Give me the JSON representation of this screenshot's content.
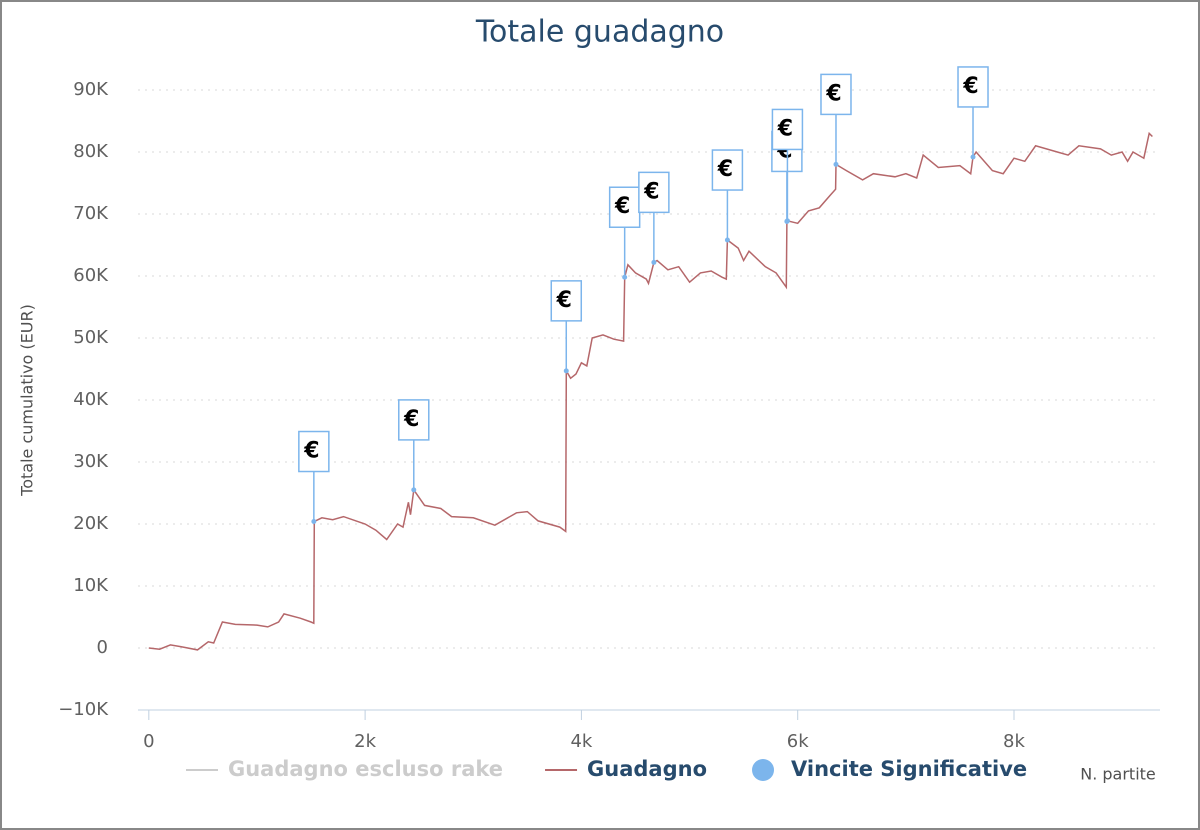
{
  "chart_data": {
    "type": "line",
    "title": "Totale guadagno",
    "x_label": "N. partite",
    "y_label": "Totale cumulativo (EUR)",
    "xlim": [
      -100,
      9350
    ],
    "ylim": [
      -10000,
      90000
    ],
    "xticks": [
      0,
      {
        "value": 2000,
        "label": "2k"
      },
      {
        "value": 4000,
        "label": "4k"
      },
      {
        "value": 6000,
        "label": "6k"
      },
      {
        "value": 8000,
        "label": "8k"
      }
    ],
    "yticks": [
      {
        "value": -10000,
        "label": "−10K"
      },
      0,
      {
        "value": 10000,
        "label": "10K"
      },
      {
        "value": 20000,
        "label": "20K"
      },
      {
        "value": 30000,
        "label": "30K"
      },
      {
        "value": 40000,
        "label": "40K"
      },
      {
        "value": 50000,
        "label": "50K"
      },
      {
        "value": 60000,
        "label": "60K"
      },
      {
        "value": 70000,
        "label": "70K"
      },
      {
        "value": 80000,
        "label": "80K"
      },
      {
        "value": 90000,
        "label": "90K"
      }
    ],
    "grid": true,
    "series": [
      {
        "name": "Guadagno escluso rake",
        "color": "#cccccc",
        "visible": false
      },
      {
        "name": "Guadagno",
        "color": "#b5676a",
        "visible": true,
        "x": [
          0,
          100,
          200,
          300,
          450,
          550,
          600,
          680,
          800,
          1000,
          1100,
          1200,
          1250,
          1400,
          1500,
          1526,
          1530,
          1600,
          1700,
          1800,
          2000,
          2100,
          2200,
          2300,
          2350,
          2400,
          2420,
          2450,
          2550,
          2700,
          2800,
          3000,
          3200,
          3400,
          3500,
          3600,
          3800,
          3855,
          3860,
          3900,
          3950,
          4000,
          4050,
          4100,
          4200,
          4300,
          4390,
          4400,
          4430,
          4500,
          4600,
          4620,
          4670,
          4700,
          4800,
          4900,
          5000,
          5100,
          5200,
          5300,
          5340,
          5350,
          5450,
          5500,
          5550,
          5700,
          5800,
          5895,
          5900,
          5905,
          6000,
          6100,
          6200,
          6300,
          6350,
          6354,
          6450,
          6600,
          6700,
          6900,
          7000,
          7100,
          7160,
          7300,
          7500,
          7600,
          7621,
          7650,
          7800,
          7900,
          8000,
          8100,
          8200,
          8400,
          8500,
          8600,
          8800,
          8900,
          9000,
          9050,
          9100,
          9200,
          9250,
          9280
        ],
        "values": [
          0,
          -200,
          500,
          200,
          -300,
          1000,
          800,
          4200,
          3800,
          3700,
          3400,
          4200,
          5500,
          4800,
          4200,
          4000,
          20400,
          21000,
          20700,
          21200,
          20000,
          19000,
          17500,
          20000,
          19500,
          23500,
          21500,
          25500,
          23000,
          22500,
          21200,
          21000,
          19800,
          21800,
          22000,
          20500,
          19500,
          18800,
          44700,
          43500,
          44200,
          46000,
          45500,
          50000,
          50500,
          49800,
          49500,
          59800,
          61800,
          60500,
          59500,
          58800,
          62200,
          62500,
          61000,
          61500,
          59000,
          60500,
          60800,
          59800,
          59500,
          65800,
          64500,
          62500,
          64000,
          61500,
          60500,
          58200,
          68800,
          68900,
          68500,
          70500,
          71000,
          73000,
          74000,
          78000,
          77000,
          75500,
          76500,
          76000,
          76500,
          75800,
          79500,
          77500,
          77800,
          76500,
          79200,
          80000,
          77000,
          76500,
          79000,
          78500,
          81000,
          80000,
          79500,
          81000,
          80500,
          79500,
          80000,
          78500,
          80000,
          79000,
          83000,
          82500
        ]
      },
      {
        "name": "Vincite Significative",
        "color": "#7cb5ec",
        "flag_text": "€",
        "x": [
          1526,
          2450,
          3860,
          4400,
          4670,
          5350,
          5900,
          5905,
          6354,
          7621
        ],
        "values": [
          20400,
          25500,
          44700,
          59800,
          62200,
          65800,
          68800,
          68900,
          78000,
          79200
        ]
      }
    ]
  }
}
